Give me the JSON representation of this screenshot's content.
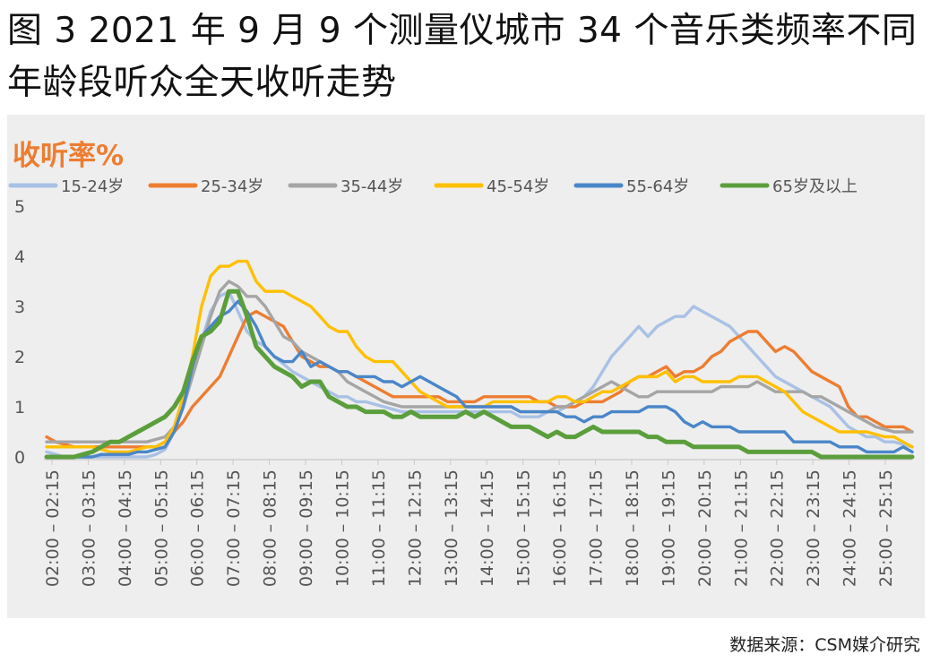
{
  "title": "图 3 2021 年 9 月 9 个测量仪城市 34 个音乐类频率不同年龄段听众全天收听走势",
  "source": "数据来源：CSM媒介研究",
  "chart_data": {
    "type": "line",
    "title": "图 3 2021 年 9 月 9 个测量仪城市 34 个音乐类频率不同年龄段听众全天收听走势",
    "ylabel": "收听率%",
    "xlabel": "",
    "ylim": [
      0,
      5
    ],
    "yticks": [
      0,
      1,
      2,
      3,
      4,
      5
    ],
    "grid": false,
    "legend_position": "top",
    "x_tick_labels": [
      "02:00 – 02:15",
      "03:00 – 03:15",
      "04:00 – 04:15",
      "05:00 – 05:15",
      "06:00 – 06:15",
      "07:00 – 07:15",
      "08:00 – 08:15",
      "09:00 – 09:15",
      "10:00 – 10:15",
      "11:00 – 11:15",
      "12:00 – 12:15",
      "13:00 – 13:15",
      "14:00 – 14:15",
      "15:00 – 15:15",
      "16:00 – 16:15",
      "17:00 – 17:15",
      "18:00 – 18:15",
      "19:00 – 19:15",
      "20:00 – 20:15",
      "21:00 – 21:15",
      "22:00 – 22:15",
      "23:00 – 23:15",
      "24:00 – 24:15",
      "25:00 – 25:15"
    ],
    "x_interval_minutes": 15,
    "series": [
      {
        "name": "15-24岁",
        "color": "#a9c1e5",
        "values": [
          0.1,
          0.05,
          0.0,
          0.0,
          0.0,
          0.0,
          0.0,
          0.0,
          0.0,
          0.0,
          0.0,
          0.0,
          0.05,
          0.15,
          0.5,
          1.0,
          1.6,
          2.3,
          2.9,
          3.2,
          3.3,
          2.9,
          2.5,
          2.3,
          2.2,
          2.0,
          1.85,
          1.7,
          1.6,
          1.5,
          1.4,
          1.3,
          1.2,
          1.2,
          1.1,
          1.1,
          1.05,
          1.0,
          0.95,
          0.9,
          0.9,
          0.9,
          0.9,
          0.9,
          0.9,
          0.9,
          0.9,
          0.9,
          0.9,
          0.9,
          0.9,
          0.9,
          0.8,
          0.8,
          0.8,
          0.9,
          0.9,
          1.0,
          1.1,
          1.2,
          1.4,
          1.7,
          2.0,
          2.2,
          2.4,
          2.6,
          2.4,
          2.6,
          2.7,
          2.8,
          2.8,
          3.0,
          2.9,
          2.8,
          2.7,
          2.6,
          2.4,
          2.2,
          2.0,
          1.8,
          1.6,
          1.5,
          1.4,
          1.3,
          1.2,
          1.1,
          1.0,
          0.8,
          0.6,
          0.5,
          0.4,
          0.4,
          0.3,
          0.3,
          0.25,
          0.2
        ]
      },
      {
        "name": "25-34岁",
        "color": "#ed7d31",
        "values": [
          0.4,
          0.3,
          0.25,
          0.2,
          0.2,
          0.2,
          0.2,
          0.2,
          0.2,
          0.2,
          0.2,
          0.2,
          0.2,
          0.3,
          0.5,
          0.7,
          1.0,
          1.2,
          1.4,
          1.6,
          2.0,
          2.4,
          2.8,
          2.9,
          2.8,
          2.7,
          2.6,
          2.3,
          2.0,
          1.9,
          1.8,
          1.8,
          1.7,
          1.7,
          1.6,
          1.5,
          1.4,
          1.3,
          1.2,
          1.2,
          1.2,
          1.2,
          1.2,
          1.2,
          1.1,
          1.1,
          1.1,
          1.1,
          1.2,
          1.2,
          1.2,
          1.2,
          1.2,
          1.2,
          1.1,
          1.1,
          1.0,
          1.0,
          1.0,
          1.1,
          1.1,
          1.1,
          1.2,
          1.3,
          1.5,
          1.6,
          1.6,
          1.7,
          1.8,
          1.6,
          1.7,
          1.7,
          1.8,
          2.0,
          2.1,
          2.3,
          2.4,
          2.5,
          2.5,
          2.3,
          2.1,
          2.2,
          2.1,
          1.9,
          1.7,
          1.6,
          1.5,
          1.4,
          1.0,
          0.8,
          0.8,
          0.7,
          0.6,
          0.6,
          0.6,
          0.5
        ]
      },
      {
        "name": "35-44岁",
        "color": "#a5a5a5",
        "values": [
          0.3,
          0.3,
          0.3,
          0.3,
          0.3,
          0.3,
          0.3,
          0.3,
          0.3,
          0.3,
          0.3,
          0.3,
          0.35,
          0.4,
          0.6,
          1.0,
          1.6,
          2.2,
          2.8,
          3.3,
          3.5,
          3.4,
          3.2,
          3.2,
          3.0,
          2.7,
          2.4,
          2.3,
          2.1,
          2.0,
          1.9,
          1.8,
          1.7,
          1.5,
          1.4,
          1.3,
          1.2,
          1.1,
          1.05,
          1.0,
          1.0,
          1.0,
          1.0,
          1.0,
          1.0,
          1.0,
          1.0,
          1.0,
          1.0,
          1.0,
          1.0,
          1.0,
          0.9,
          0.9,
          0.9,
          0.9,
          1.0,
          1.0,
          1.1,
          1.2,
          1.3,
          1.4,
          1.5,
          1.4,
          1.3,
          1.2,
          1.2,
          1.3,
          1.3,
          1.3,
          1.3,
          1.3,
          1.3,
          1.3,
          1.4,
          1.4,
          1.4,
          1.4,
          1.5,
          1.4,
          1.3,
          1.3,
          1.3,
          1.3,
          1.2,
          1.2,
          1.1,
          1.0,
          0.9,
          0.8,
          0.7,
          0.6,
          0.55,
          0.5,
          0.5,
          0.5
        ]
      },
      {
        "name": "45-54岁",
        "color": "#ffc000",
        "values": [
          0.2,
          0.2,
          0.2,
          0.2,
          0.2,
          0.2,
          0.15,
          0.1,
          0.1,
          0.1,
          0.15,
          0.2,
          0.2,
          0.3,
          0.6,
          1.2,
          2.0,
          3.0,
          3.6,
          3.8,
          3.8,
          3.9,
          3.9,
          3.5,
          3.3,
          3.3,
          3.3,
          3.2,
          3.1,
          3.0,
          2.8,
          2.6,
          2.5,
          2.5,
          2.2,
          2.0,
          1.9,
          1.9,
          1.9,
          1.7,
          1.5,
          1.3,
          1.2,
          1.1,
          1.0,
          1.0,
          1.0,
          1.0,
          1.0,
          1.1,
          1.1,
          1.1,
          1.1,
          1.1,
          1.1,
          1.1,
          1.2,
          1.2,
          1.1,
          1.1,
          1.2,
          1.3,
          1.3,
          1.4,
          1.5,
          1.6,
          1.6,
          1.6,
          1.7,
          1.5,
          1.6,
          1.6,
          1.5,
          1.5,
          1.5,
          1.5,
          1.6,
          1.6,
          1.6,
          1.5,
          1.4,
          1.3,
          1.1,
          0.9,
          0.8,
          0.7,
          0.6,
          0.5,
          0.5,
          0.5,
          0.5,
          0.45,
          0.4,
          0.4,
          0.3,
          0.2
        ]
      },
      {
        "name": "55-64岁",
        "color": "#4a86c8",
        "values": [
          0.0,
          0.0,
          0.0,
          0.0,
          0.0,
          0.0,
          0.05,
          0.05,
          0.05,
          0.05,
          0.1,
          0.1,
          0.15,
          0.2,
          0.5,
          1.0,
          1.8,
          2.4,
          2.6,
          2.8,
          2.9,
          3.1,
          2.9,
          2.6,
          2.2,
          2.0,
          1.9,
          1.9,
          2.1,
          1.8,
          1.9,
          1.8,
          1.7,
          1.7,
          1.6,
          1.6,
          1.6,
          1.5,
          1.5,
          1.4,
          1.5,
          1.6,
          1.5,
          1.4,
          1.3,
          1.2,
          1.0,
          1.0,
          1.0,
          1.0,
          1.0,
          1.0,
          0.9,
          0.9,
          0.9,
          0.9,
          0.9,
          0.8,
          0.8,
          0.7,
          0.8,
          0.8,
          0.9,
          0.9,
          0.9,
          0.9,
          1.0,
          1.0,
          1.0,
          0.9,
          0.7,
          0.6,
          0.7,
          0.6,
          0.6,
          0.6,
          0.5,
          0.5,
          0.5,
          0.5,
          0.5,
          0.5,
          0.3,
          0.3,
          0.3,
          0.3,
          0.3,
          0.2,
          0.2,
          0.2,
          0.1,
          0.1,
          0.1,
          0.1,
          0.2,
          0.1
        ]
      },
      {
        "name": "65岁及以上",
        "color": "#5b9e3c",
        "values": [
          0.0,
          0.0,
          0.0,
          0.0,
          0.05,
          0.1,
          0.2,
          0.3,
          0.3,
          0.4,
          0.5,
          0.6,
          0.7,
          0.8,
          1.0,
          1.3,
          1.9,
          2.4,
          2.5,
          2.7,
          3.3,
          3.3,
          2.8,
          2.2,
          2.0,
          1.8,
          1.7,
          1.6,
          1.4,
          1.5,
          1.5,
          1.2,
          1.1,
          1.0,
          1.0,
          0.9,
          0.9,
          0.9,
          0.8,
          0.8,
          0.9,
          0.8,
          0.8,
          0.8,
          0.8,
          0.8,
          0.9,
          0.8,
          0.9,
          0.8,
          0.7,
          0.6,
          0.6,
          0.6,
          0.5,
          0.4,
          0.5,
          0.4,
          0.4,
          0.5,
          0.6,
          0.5,
          0.5,
          0.5,
          0.5,
          0.5,
          0.4,
          0.4,
          0.3,
          0.3,
          0.3,
          0.2,
          0.2,
          0.2,
          0.2,
          0.2,
          0.2,
          0.1,
          0.1,
          0.1,
          0.1,
          0.1,
          0.1,
          0.1,
          0.1,
          0.0,
          0.0,
          0.0,
          0.0,
          0.0,
          0.0,
          0.0,
          0.0,
          0.0,
          0.0,
          0.0
        ]
      }
    ]
  }
}
